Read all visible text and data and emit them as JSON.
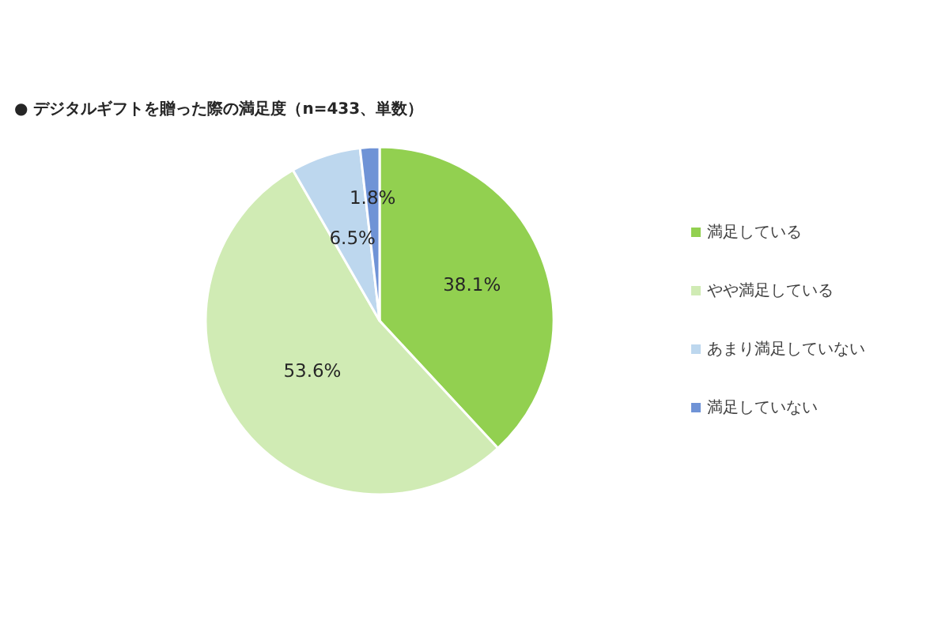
{
  "chart_data": {
    "type": "pie",
    "title": "● デジタルギフトを贈った際の満足度（n=433、単数）",
    "categories": [
      "満足している",
      "やや満足している",
      "あまり満足していない",
      "満足していない"
    ],
    "values": [
      38.1,
      53.6,
      6.5,
      1.8
    ],
    "colors": [
      "#92d050",
      "#d0ebb4",
      "#bdd7ee",
      "#6f93d6"
    ],
    "value_labels": [
      "38.1%",
      "53.6%",
      "6.5%",
      "1.8%"
    ],
    "legend": "right"
  }
}
